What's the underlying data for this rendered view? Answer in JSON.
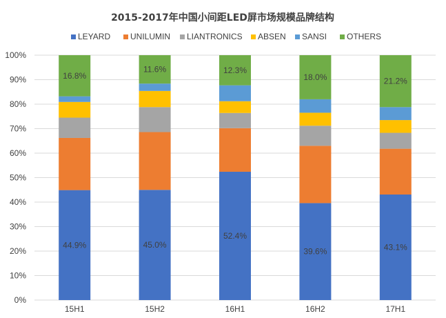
{
  "chart_data": {
    "type": "bar",
    "stacked": true,
    "percent_stacked": true,
    "title": "2015-2017年中国小间距LED屏市场规模品牌结构",
    "xlabel": "",
    "ylabel": "",
    "ylim": [
      0,
      100
    ],
    "yticks": [
      "0%",
      "10%",
      "20%",
      "30%",
      "40%",
      "50%",
      "60%",
      "70%",
      "80%",
      "90%",
      "100%"
    ],
    "categories": [
      "15H1",
      "15H2",
      "16H1",
      "16H2",
      "17H1"
    ],
    "legend_position": "top",
    "grid": true,
    "series": [
      {
        "name": "LEYARD",
        "color": "#4472c4",
        "values": [
          44.9,
          45.0,
          52.4,
          39.6,
          43.1
        ],
        "labels": [
          "44.9%",
          "45.0%",
          "52.4%",
          "39.6%",
          "43.1%"
        ]
      },
      {
        "name": "UNILUMIN",
        "color": "#ed7d31",
        "values": [
          21.3,
          23.6,
          17.8,
          23.4,
          18.7
        ]
      },
      {
        "name": "LIANTRONICS",
        "color": "#a5a5a5",
        "values": [
          8.3,
          10.2,
          6.2,
          8.2,
          6.5
        ]
      },
      {
        "name": "ABSEN",
        "color": "#ffc000",
        "values": [
          6.4,
          6.6,
          4.8,
          5.3,
          5.2
        ]
      },
      {
        "name": "SANSI",
        "color": "#5b9bd5",
        "values": [
          2.3,
          3.0,
          6.5,
          5.5,
          5.3
        ]
      },
      {
        "name": "OTHERS",
        "color": "#70ad47",
        "values": [
          16.8,
          11.6,
          12.3,
          18.0,
          21.2
        ],
        "labels": [
          "16.8%",
          "11.6%",
          "12.3%",
          "18.0%",
          "21.2%"
        ]
      }
    ]
  }
}
